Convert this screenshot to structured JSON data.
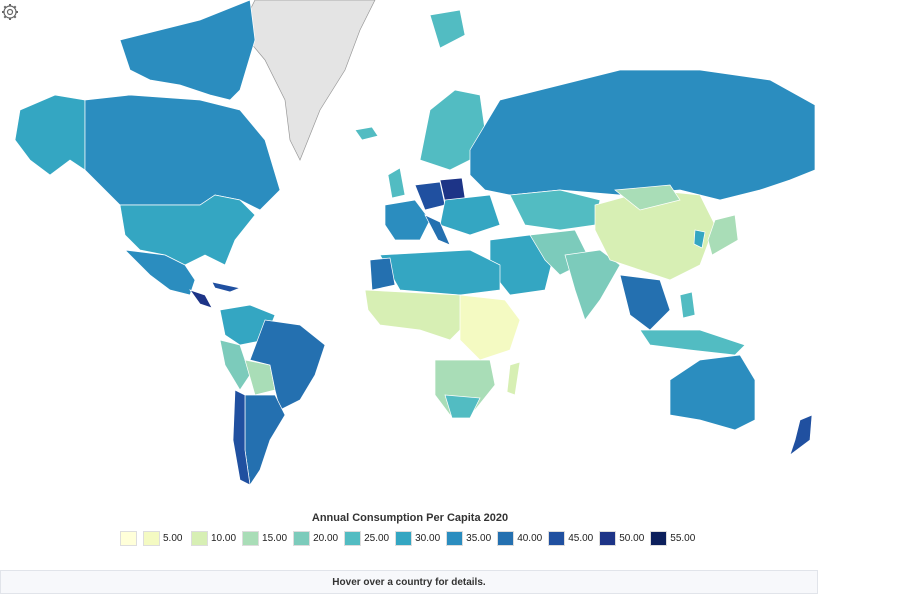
{
  "legend": {
    "title": "Annual Consumption Per Capita 2020",
    "bins": [
      {
        "label": "",
        "color": "#ffffd9"
      },
      {
        "label": "5.00",
        "color": "#f4fac2"
      },
      {
        "label": "10.00",
        "color": "#d7efb4"
      },
      {
        "label": "15.00",
        "color": "#a9ddb7"
      },
      {
        "label": "20.00",
        "color": "#7ccbbb"
      },
      {
        "label": "25.00",
        "color": "#52bcc2"
      },
      {
        "label": "30.00",
        "color": "#34a6c2"
      },
      {
        "label": "35.00",
        "color": "#2b8dbf"
      },
      {
        "label": "40.00",
        "color": "#2470b0"
      },
      {
        "label": "45.00",
        "color": "#2050a0"
      },
      {
        "label": "50.00",
        "color": "#1d3487"
      },
      {
        "label": "55.00",
        "color": "#0c1f5c"
      }
    ]
  },
  "info": {
    "text": "Hover over a country for details."
  },
  "colors": {
    "no_data": "#e4e4e4",
    "border": "#ffffff"
  },
  "icons": {
    "settings": "gear-icon"
  }
}
